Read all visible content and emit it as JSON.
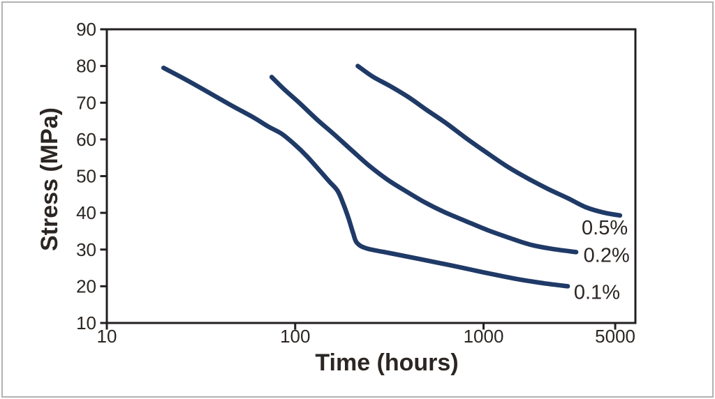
{
  "figure": {
    "frame_color": "#b2b2b2",
    "background_color": "#ffffff"
  },
  "chart_data": {
    "type": "line",
    "title": "",
    "xlabel": "Time (hours)",
    "ylabel": "Stress (MPa)",
    "x_scale": "log",
    "y_scale": "linear",
    "xlim": [
      10,
      6400
    ],
    "ylim": [
      10,
      90
    ],
    "grid": false,
    "legend_position": "inline-labels-right-of-curve-ends",
    "line_color": "#1f3a67",
    "axis_color": "#231f20",
    "text_color": "#2b2623",
    "x_ticks": [
      {
        "value": 10,
        "label": "10"
      },
      {
        "value": 100,
        "label": "100"
      },
      {
        "value": 1000,
        "label": "1000"
      },
      {
        "value": 5000,
        "label": "5000"
      }
    ],
    "y_ticks": [
      {
        "value": 10,
        "label": "10"
      },
      {
        "value": 20,
        "label": "20"
      },
      {
        "value": 30,
        "label": "30"
      },
      {
        "value": 40,
        "label": "40"
      },
      {
        "value": 50,
        "label": "50"
      },
      {
        "value": 60,
        "label": "60"
      },
      {
        "value": 70,
        "label": "70"
      },
      {
        "value": 80,
        "label": "80"
      },
      {
        "value": 90,
        "label": "90"
      }
    ],
    "series": [
      {
        "name": "0.1%",
        "label_anchor": {
          "t": 4000,
          "s": 18.5
        },
        "points": [
          [
            20,
            79.5
          ],
          [
            28,
            75.5
          ],
          [
            45,
            69.5
          ],
          [
            60,
            66
          ],
          [
            72,
            63.5
          ],
          [
            85,
            61.5
          ],
          [
            100,
            58.5
          ],
          [
            115,
            55.5
          ],
          [
            135,
            51.5
          ],
          [
            152,
            48.5
          ],
          [
            168,
            46
          ],
          [
            180,
            42.5
          ],
          [
            192,
            38.5
          ],
          [
            203,
            34.5
          ],
          [
            213,
            31.8
          ],
          [
            240,
            30.3
          ],
          [
            320,
            29
          ],
          [
            450,
            27.5
          ],
          [
            700,
            25.5
          ],
          [
            1000,
            23.8
          ],
          [
            1500,
            22
          ],
          [
            2100,
            20.8
          ],
          [
            2800,
            20
          ]
        ]
      },
      {
        "name": "0.2%",
        "label_anchor": {
          "t": 4500,
          "s": 28.5
        },
        "points": [
          [
            75,
            77
          ],
          [
            88,
            73.5
          ],
          [
            105,
            70
          ],
          [
            130,
            65.5
          ],
          [
            160,
            61.5
          ],
          [
            200,
            57
          ],
          [
            245,
            53
          ],
          [
            310,
            49
          ],
          [
            390,
            45.8
          ],
          [
            490,
            42.8
          ],
          [
            620,
            40.2
          ],
          [
            800,
            37.8
          ],
          [
            1050,
            35.3
          ],
          [
            1350,
            33.3
          ],
          [
            1750,
            31.4
          ],
          [
            2300,
            30.2
          ],
          [
            3100,
            29.3
          ]
        ]
      },
      {
        "name": "0.5%",
        "label_anchor": {
          "t": 4400,
          "s": 36
        },
        "points": [
          [
            215,
            80
          ],
          [
            260,
            77
          ],
          [
            320,
            74.5
          ],
          [
            400,
            71.5
          ],
          [
            500,
            68
          ],
          [
            630,
            64.5
          ],
          [
            800,
            60.5
          ],
          [
            1000,
            57
          ],
          [
            1300,
            53
          ],
          [
            1700,
            49.5
          ],
          [
            2200,
            46.5
          ],
          [
            2800,
            44
          ],
          [
            3500,
            41.5
          ],
          [
            4400,
            40
          ],
          [
            5300,
            39.3
          ]
        ]
      }
    ]
  }
}
